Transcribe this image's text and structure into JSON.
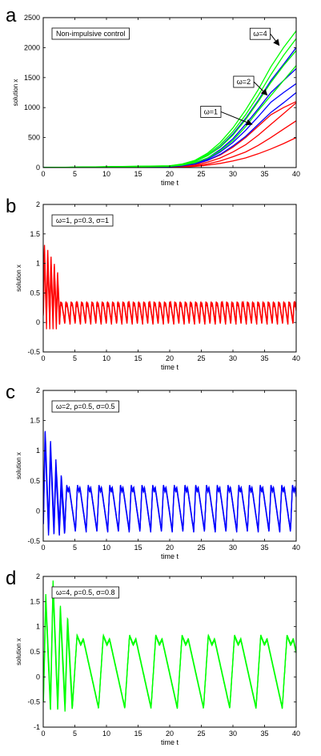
{
  "chart_data": [
    {
      "panel_letter": "a",
      "type": "line",
      "xlabel": "time t",
      "ylabel": "solution x",
      "xlim": [
        0,
        40
      ],
      "ylim": [
        0,
        2500
      ],
      "xticks": [
        0,
        5,
        10,
        15,
        20,
        25,
        30,
        35,
        40
      ],
      "yticks": [
        0,
        500,
        1000,
        1500,
        2000,
        2500
      ],
      "grid": false,
      "legend": "top-left",
      "legend_text": "Non-impulsive control",
      "annotations": [
        {
          "label": "ω=4",
          "box_at": [
            34.3,
            2230
          ],
          "arrow_to": [
            37.3,
            2040
          ]
        },
        {
          "label": "ω=2",
          "box_at": [
            31.7,
            1430
          ],
          "arrow_to": [
            35.4,
            1210
          ]
        },
        {
          "label": "ω=1",
          "box_at": [
            26.5,
            930
          ],
          "arrow_to": [
            33.0,
            720
          ]
        }
      ],
      "x": [
        0,
        20,
        22,
        24,
        26,
        28,
        30,
        32,
        34,
        36,
        38,
        40
      ],
      "series": [
        {
          "color": "#ff0000",
          "values": [
            0,
            5,
            10,
            20,
            40,
            70,
            110,
            160,
            230,
            310,
            400,
            500
          ]
        },
        {
          "color": "#ff0000",
          "values": [
            0,
            8,
            15,
            30,
            60,
            110,
            180,
            260,
            370,
            500,
            640,
            780
          ]
        },
        {
          "color": "#ff0000",
          "values": [
            0,
            12,
            22,
            45,
            90,
            160,
            260,
            380,
            540,
            720,
            900,
            1080
          ]
        },
        {
          "color": "#ff0000",
          "values": [
            0,
            15,
            30,
            60,
            120,
            210,
            340,
            500,
            690,
            880,
            1000,
            1100
          ]
        },
        {
          "color": "#0000ff",
          "values": [
            0,
            15,
            30,
            60,
            120,
            220,
            360,
            520,
            720,
            920,
            1080,
            1250
          ]
        },
        {
          "color": "#0000ff",
          "values": [
            0,
            18,
            35,
            70,
            140,
            260,
            420,
            620,
            850,
            1090,
            1250,
            1400
          ]
        },
        {
          "color": "#0000ff",
          "values": [
            0,
            20,
            40,
            80,
            160,
            300,
            480,
            720,
            980,
            1250,
            1450,
            1650
          ]
        },
        {
          "color": "#0000ff",
          "values": [
            0,
            25,
            50,
            100,
            200,
            350,
            560,
            820,
            1120,
            1450,
            1720,
            2000
          ]
        },
        {
          "color": "#00ff00",
          "values": [
            0,
            20,
            40,
            80,
            160,
            280,
            450,
            680,
            950,
            1200,
            1450,
            1700
          ]
        },
        {
          "color": "#00ff00",
          "values": [
            0,
            25,
            50,
            100,
            200,
            340,
            540,
            800,
            1100,
            1420,
            1700,
            1950
          ]
        },
        {
          "color": "#00ff00",
          "values": [
            0,
            28,
            55,
            110,
            220,
            380,
            600,
            880,
            1200,
            1550,
            1870,
            2150
          ]
        },
        {
          "color": "#00ff00",
          "values": [
            0,
            30,
            60,
            120,
            240,
            420,
            660,
            960,
            1300,
            1680,
            2000,
            2280
          ]
        }
      ]
    },
    {
      "panel_letter": "b",
      "type": "line",
      "xlabel": "time t",
      "ylabel": "solution x",
      "xlim": [
        0,
        40
      ],
      "ylim": [
        -0.5,
        2
      ],
      "xticks": [
        0,
        5,
        10,
        15,
        20,
        25,
        30,
        35,
        40
      ],
      "yticks": [
        -0.5,
        0,
        0.5,
        1,
        1.5,
        2
      ],
      "grid": false,
      "legend": "top-left",
      "legend_text": "ω=1,  ρ=0.3,  σ=1",
      "color": "#ff0000",
      "oscillation": {
        "omega": 1,
        "period": 0.82,
        "center": 0.16,
        "amplitude": 0.18,
        "transient_peaks": [
          1.27,
          1.18,
          1.06,
          0.93,
          0.78
        ],
        "transient_end": 2.6
      }
    },
    {
      "panel_letter": "c",
      "type": "line",
      "xlabel": "time t",
      "ylabel": "solution x",
      "xlim": [
        0,
        40
      ],
      "ylim": [
        -0.5,
        2
      ],
      "xticks": [
        0,
        5,
        10,
        15,
        20,
        25,
        30,
        35,
        40
      ],
      "yticks": [
        -0.5,
        0,
        0.5,
        1,
        1.5,
        2
      ],
      "grid": false,
      "legend": "top-left",
      "legend_text": "ω=2,  ρ=0.5,  σ=0.5",
      "color": "#0000ff",
      "oscillation": {
        "omega": 2,
        "period": 1.7,
        "center": 0.04,
        "amplitude": 0.38,
        "transient_peaks": [
          1.28,
          1.08,
          0.75,
          0.5
        ],
        "transient_end": 3.4
      }
    },
    {
      "panel_letter": "d",
      "type": "line",
      "xlabel": "time t",
      "ylabel": "solution x",
      "xlim": [
        0,
        40
      ],
      "ylim": [
        -1,
        2
      ],
      "xticks": [
        0,
        5,
        10,
        15,
        20,
        25,
        30,
        35,
        40
      ],
      "yticks": [
        -1,
        -0.5,
        0,
        0.5,
        1,
        1.5,
        2
      ],
      "grid": false,
      "legend": "top-left",
      "legend_text": "ω=4,  ρ=0.5,  σ=0.8",
      "color": "#00ff00",
      "oscillation": {
        "omega": 4,
        "period": 4.15,
        "center": 0.1,
        "amplitude": 0.72,
        "transient_peaks": [
          1.55,
          1.83,
          1.35,
          1.1
        ],
        "transient_end": 4.6
      }
    }
  ]
}
